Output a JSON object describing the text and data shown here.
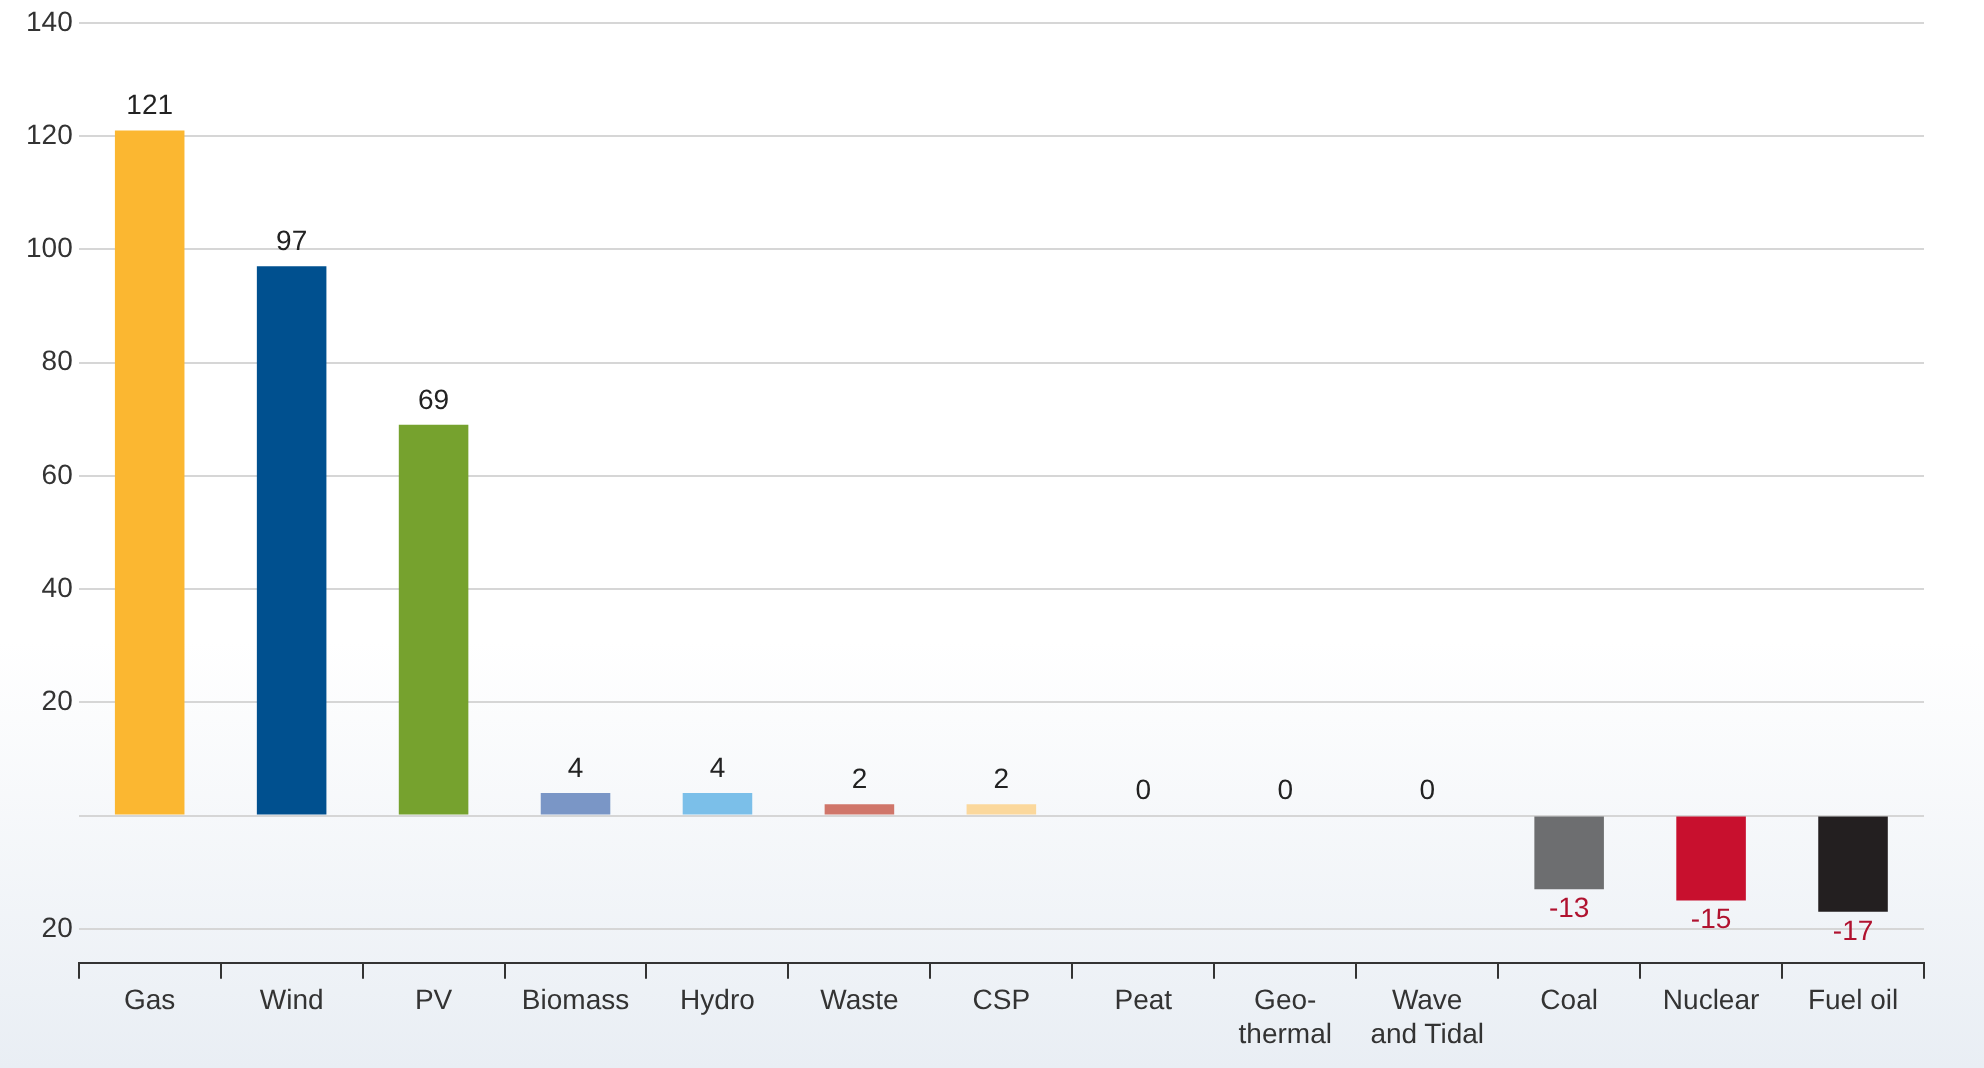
{
  "chart_data": {
    "type": "bar",
    "categories": [
      "Gas",
      "Wind",
      "PV",
      "Biomass",
      "Hydro",
      "Waste",
      "CSP",
      "Peat",
      "Geo-\nthermal",
      "Wave\nand Tidal",
      "Coal",
      "Nuclear",
      "Fuel oil"
    ],
    "values": [
      121,
      97,
      69,
      4,
      4,
      2,
      2,
      0,
      0,
      0,
      -13,
      -15,
      -17
    ],
    "colors": [
      "#fbb731",
      "#00508f",
      "#76a22e",
      "#7a96c6",
      "#7bbfe9",
      "#d0766a",
      "#fbd89c",
      "#c9d6a8",
      "#d8d8d8",
      "#c8e0c8",
      "#6d6e70",
      "#c8102e",
      "#231f20"
    ],
    "ylim": [
      -26,
      140
    ],
    "yticks": [
      {
        "value": -20,
        "label": "20"
      },
      {
        "value": 0,
        "label": null
      },
      20,
      40,
      60,
      80,
      100,
      120,
      140
    ],
    "grid": "y",
    "legend": false,
    "data_labels": true
  }
}
